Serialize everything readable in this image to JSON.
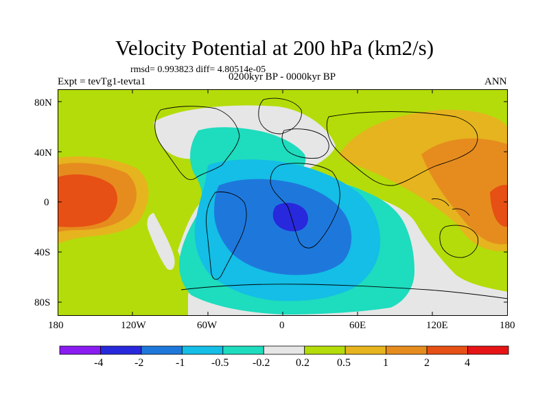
{
  "title": "Velocity Potential at 200 hPa (km2/s)",
  "stats": "rmsd= 0.993823  diff= 4.80514e-05",
  "left_label": "Expt = tevTg1-tevta1",
  "center_label": "0200kyr BP - 0000kyr BP",
  "right_label": "ANN",
  "lat_ticks": [
    "80N",
    "40N",
    "0",
    "40S",
    "80S"
  ],
  "lon_ticks": [
    "180",
    "120W",
    "60W",
    "0",
    "60E",
    "120E",
    "180"
  ],
  "colorbar": {
    "labels": [
      "-4",
      "-2",
      "-1",
      "-0.5",
      "-0.2",
      "0.2",
      "0.5",
      "1",
      "2",
      "4"
    ],
    "colors": [
      "#8a1cf2",
      "#2828dc",
      "#1e78dc",
      "#14bee6",
      "#1edcbe",
      "#e6e6e6",
      "#b4dc0a",
      "#e6b41e",
      "#e68c1e",
      "#e65014",
      "#e61414"
    ]
  },
  "map_colors": {
    "ocean_default": "#b4dc0a",
    "neutral": "#e6e6e6",
    "weak_negative": "#1edcbe",
    "negative": "#14bee6",
    "strong_negative": "#1e78dc",
    "min_negative": "#2828dc",
    "weak_positive": "#b4dc0a",
    "positive": "#e6b41e",
    "strong_positive": "#e68c1e",
    "max_positive": "#e65014"
  }
}
